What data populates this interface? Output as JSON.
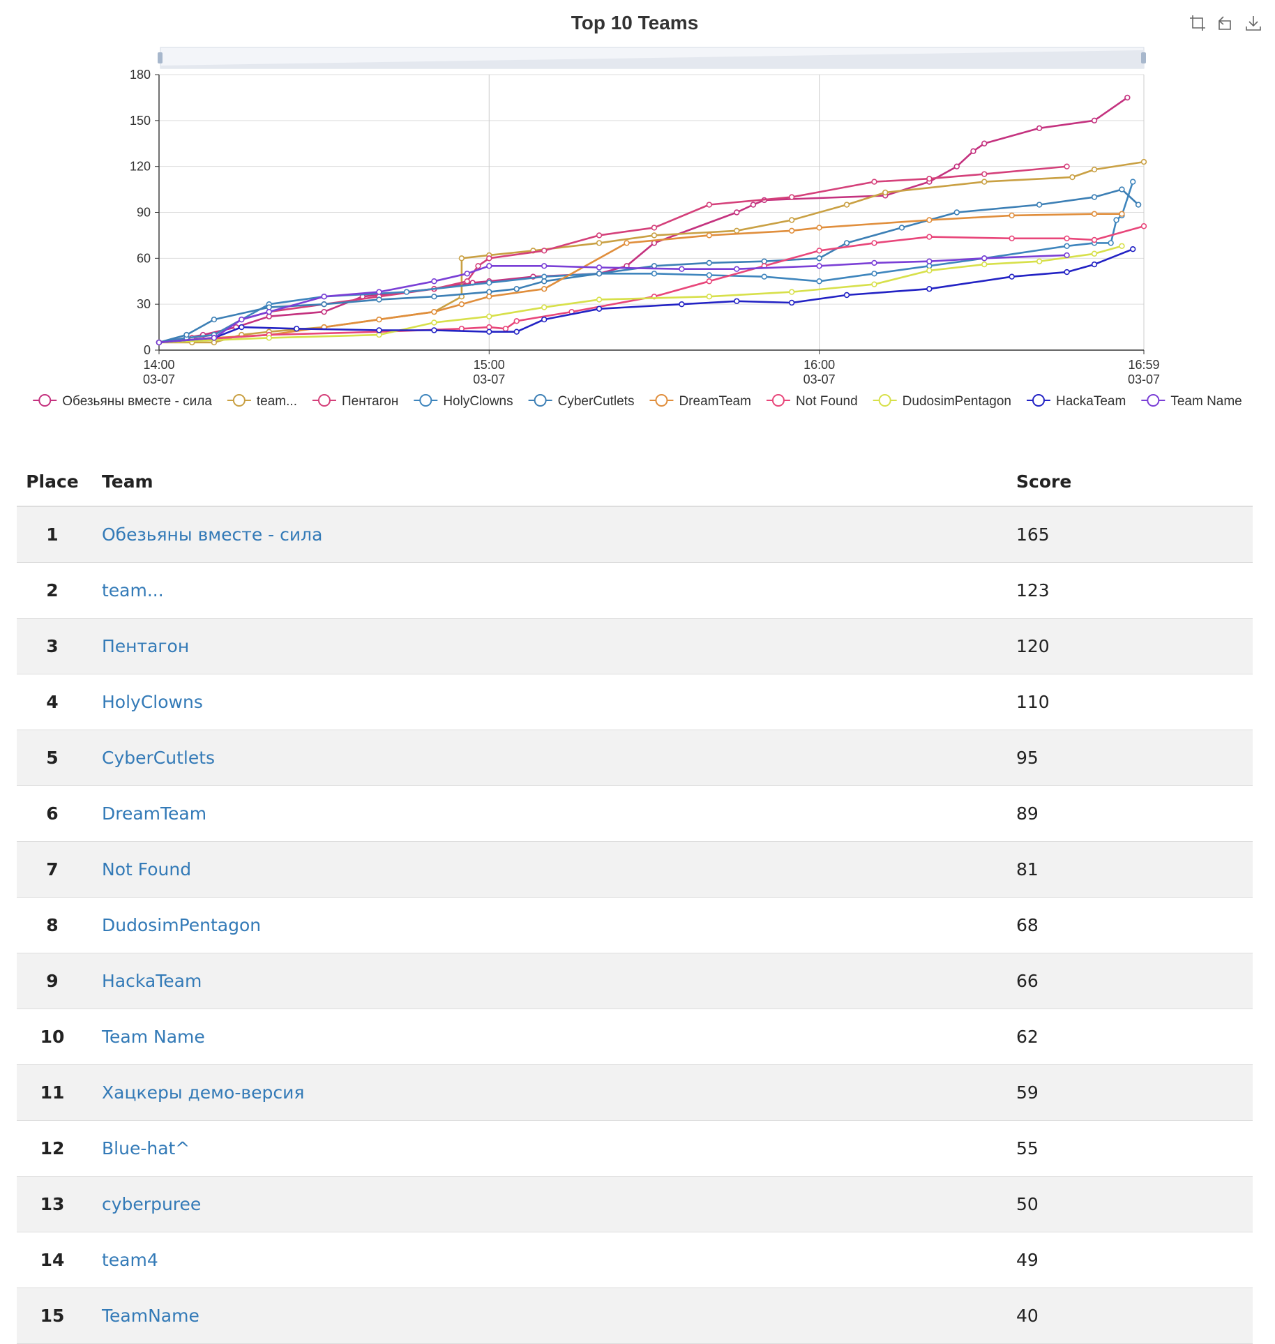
{
  "chart_data": {
    "type": "line",
    "title": "Top 10 Teams",
    "x_axis": {
      "type": "time",
      "min": "14:00",
      "max": "16:59",
      "ticks": [
        {
          "t": "14:00",
          "label": "14:00",
          "sub": "03-07"
        },
        {
          "t": "15:00",
          "label": "15:00",
          "sub": "03-07"
        },
        {
          "t": "16:00",
          "label": "16:00",
          "sub": "03-07"
        },
        {
          "t": "16:59",
          "label": "16:59",
          "sub": "03-07"
        }
      ]
    },
    "y_axis": {
      "min": 0,
      "max": 180,
      "ticks": [
        0,
        30,
        60,
        90,
        120,
        150,
        180
      ]
    },
    "grid": true,
    "legend_position": "bottom",
    "data_zoom_slider": true,
    "series": [
      {
        "name": "Обезьяны вместе - сила",
        "color": "#c4327f",
        "points": [
          [
            "14:00",
            5
          ],
          [
            "14:08",
            10
          ],
          [
            "14:14",
            15
          ],
          [
            "14:20",
            22
          ],
          [
            "14:30",
            25
          ],
          [
            "14:37",
            35
          ],
          [
            "14:50",
            40
          ],
          [
            "14:57",
            44
          ],
          [
            "15:00",
            45
          ],
          [
            "15:08",
            48
          ],
          [
            "15:20",
            50
          ],
          [
            "15:25",
            55
          ],
          [
            "15:30",
            70
          ],
          [
            "15:45",
            90
          ],
          [
            "15:48",
            95
          ],
          [
            "15:50",
            98
          ],
          [
            "16:12",
            101
          ],
          [
            "16:20",
            110
          ],
          [
            "16:25",
            120
          ],
          [
            "16:28",
            130
          ],
          [
            "16:30",
            135
          ],
          [
            "16:40",
            145
          ],
          [
            "16:50",
            150
          ],
          [
            "16:56",
            165
          ]
        ]
      },
      {
        "name": "team...",
        "color": "#c9a043",
        "points": [
          [
            "14:00",
            5
          ],
          [
            "14:06",
            5
          ],
          [
            "14:10",
            5
          ],
          [
            "14:15",
            10
          ],
          [
            "14:20",
            12
          ],
          [
            "14:30",
            15
          ],
          [
            "14:40",
            20
          ],
          [
            "14:50",
            25
          ],
          [
            "14:55",
            35
          ],
          [
            "14:55",
            60
          ],
          [
            "15:00",
            62
          ],
          [
            "15:08",
            65
          ],
          [
            "15:20",
            70
          ],
          [
            "15:30",
            75
          ],
          [
            "15:45",
            78
          ],
          [
            "15:55",
            85
          ],
          [
            "16:05",
            95
          ],
          [
            "16:12",
            103
          ],
          [
            "16:30",
            110
          ],
          [
            "16:46",
            113
          ],
          [
            "16:50",
            118
          ],
          [
            "16:59",
            123
          ]
        ]
      },
      {
        "name": "Пентагон",
        "color": "#d4407a",
        "points": [
          [
            "14:00",
            5
          ],
          [
            "14:06",
            8
          ],
          [
            "14:10",
            10
          ],
          [
            "14:15",
            20
          ],
          [
            "14:20",
            25
          ],
          [
            "14:30",
            30
          ],
          [
            "14:40",
            35
          ],
          [
            "14:50",
            40
          ],
          [
            "14:56",
            45
          ],
          [
            "14:58",
            55
          ],
          [
            "15:00",
            60
          ],
          [
            "15:10",
            65
          ],
          [
            "15:20",
            75
          ],
          [
            "15:30",
            80
          ],
          [
            "15:40",
            95
          ],
          [
            "15:55",
            100
          ],
          [
            "16:10",
            110
          ],
          [
            "16:20",
            112
          ],
          [
            "16:30",
            115
          ],
          [
            "16:45",
            120
          ]
        ]
      },
      {
        "name": "HolyClowns",
        "color": "#3e85bd",
        "points": [
          [
            "14:00",
            5
          ],
          [
            "14:05",
            8
          ],
          [
            "14:10",
            10
          ],
          [
            "14:20",
            30
          ],
          [
            "14:30",
            35
          ],
          [
            "14:45",
            38
          ],
          [
            "15:00",
            44
          ],
          [
            "15:10",
            48
          ],
          [
            "15:20",
            50
          ],
          [
            "15:30",
            50
          ],
          [
            "15:40",
            49
          ],
          [
            "15:50",
            48
          ],
          [
            "16:00",
            45
          ],
          [
            "16:10",
            50
          ],
          [
            "16:20",
            55
          ],
          [
            "16:30",
            60
          ],
          [
            "16:45",
            68
          ],
          [
            "16:50",
            70
          ],
          [
            "16:53",
            70
          ],
          [
            "16:54",
            85
          ],
          [
            "16:55",
            88
          ],
          [
            "16:57",
            110
          ]
        ]
      },
      {
        "name": "CyberCutlets",
        "color": "#3c7fb5",
        "points": [
          [
            "14:00",
            5
          ],
          [
            "14:05",
            10
          ],
          [
            "14:10",
            20
          ],
          [
            "14:20",
            28
          ],
          [
            "14:30",
            30
          ],
          [
            "14:40",
            33
          ],
          [
            "14:50",
            35
          ],
          [
            "15:00",
            38
          ],
          [
            "15:05",
            40
          ],
          [
            "15:10",
            45
          ],
          [
            "15:20",
            50
          ],
          [
            "15:30",
            55
          ],
          [
            "15:40",
            57
          ],
          [
            "15:50",
            58
          ],
          [
            "16:00",
            60
          ],
          [
            "16:05",
            70
          ],
          [
            "16:15",
            80
          ],
          [
            "16:25",
            90
          ],
          [
            "16:40",
            95
          ],
          [
            "16:50",
            100
          ],
          [
            "16:55",
            105
          ],
          [
            "16:58",
            95
          ]
        ]
      },
      {
        "name": "DreamTeam",
        "color": "#e08e3c",
        "points": [
          [
            "14:00",
            5
          ],
          [
            "14:10",
            8
          ],
          [
            "14:20",
            10
          ],
          [
            "14:30",
            15
          ],
          [
            "14:40",
            20
          ],
          [
            "14:50",
            25
          ],
          [
            "14:55",
            30
          ],
          [
            "15:00",
            35
          ],
          [
            "15:10",
            40
          ],
          [
            "15:25",
            70
          ],
          [
            "15:40",
            75
          ],
          [
            "15:55",
            78
          ],
          [
            "16:00",
            80
          ],
          [
            "16:20",
            85
          ],
          [
            "16:35",
            88
          ],
          [
            "16:50",
            89
          ],
          [
            "16:55",
            89
          ]
        ]
      },
      {
        "name": "Not Found",
        "color": "#e8467a",
        "points": [
          [
            "14:00",
            5
          ],
          [
            "14:20",
            10
          ],
          [
            "14:40",
            12
          ],
          [
            "14:55",
            14
          ],
          [
            "15:00",
            15
          ],
          [
            "15:03",
            14
          ],
          [
            "15:05",
            19
          ],
          [
            "15:15",
            25
          ],
          [
            "15:30",
            35
          ],
          [
            "15:40",
            45
          ],
          [
            "15:50",
            55
          ],
          [
            "16:00",
            65
          ],
          [
            "16:10",
            70
          ],
          [
            "16:20",
            74
          ],
          [
            "16:35",
            73
          ],
          [
            "16:45",
            73
          ],
          [
            "16:50",
            72
          ],
          [
            "16:59",
            81
          ]
        ]
      },
      {
        "name": "DudosimPentagon",
        "color": "#d7e04a",
        "points": [
          [
            "14:00",
            5
          ],
          [
            "14:20",
            8
          ],
          [
            "14:40",
            10
          ],
          [
            "14:50",
            18
          ],
          [
            "15:00",
            22
          ],
          [
            "15:10",
            28
          ],
          [
            "15:20",
            33
          ],
          [
            "15:40",
            35
          ],
          [
            "15:55",
            38
          ],
          [
            "16:10",
            43
          ],
          [
            "16:20",
            52
          ],
          [
            "16:30",
            56
          ],
          [
            "16:40",
            58
          ],
          [
            "16:50",
            63
          ],
          [
            "16:55",
            68
          ]
        ]
      },
      {
        "name": "HackaTeam",
        "color": "#2222c4",
        "points": [
          [
            "14:00",
            5
          ],
          [
            "14:10",
            8
          ],
          [
            "14:15",
            15
          ],
          [
            "14:25",
            14
          ],
          [
            "14:40",
            13
          ],
          [
            "14:50",
            13
          ],
          [
            "15:00",
            12
          ],
          [
            "15:05",
            12
          ],
          [
            "15:10",
            20
          ],
          [
            "15:20",
            27
          ],
          [
            "15:35",
            30
          ],
          [
            "15:45",
            32
          ],
          [
            "15:55",
            31
          ],
          [
            "16:05",
            36
          ],
          [
            "16:20",
            40
          ],
          [
            "16:35",
            48
          ],
          [
            "16:45",
            51
          ],
          [
            "16:50",
            56
          ],
          [
            "16:57",
            66
          ]
        ]
      },
      {
        "name": "Team Name",
        "color": "#7a3fd6",
        "points": [
          [
            "14:00",
            5
          ],
          [
            "14:10",
            8
          ],
          [
            "14:15",
            20
          ],
          [
            "14:20",
            25
          ],
          [
            "14:30",
            35
          ],
          [
            "14:40",
            38
          ],
          [
            "14:50",
            45
          ],
          [
            "14:56",
            50
          ],
          [
            "15:00",
            55
          ],
          [
            "15:10",
            55
          ],
          [
            "15:20",
            54
          ],
          [
            "15:35",
            53
          ],
          [
            "15:45",
            53
          ],
          [
            "16:00",
            55
          ],
          [
            "16:10",
            57
          ],
          [
            "16:20",
            58
          ],
          [
            "16:30",
            60
          ],
          [
            "16:45",
            62
          ]
        ]
      }
    ]
  },
  "toolbox": {
    "zoom_icon": "zoom-select-icon",
    "reset_icon": "zoom-reset-icon",
    "download_icon": "download-icon"
  },
  "table": {
    "headers": {
      "place": "Place",
      "team": "Team",
      "score": "Score"
    },
    "rows": [
      {
        "place": "1",
        "team": "Обезьяны вместе - сила",
        "score": "165"
      },
      {
        "place": "2",
        "team": "team...",
        "score": "123"
      },
      {
        "place": "3",
        "team": "Пентагон",
        "score": "120"
      },
      {
        "place": "4",
        "team": "HolyClowns",
        "score": "110"
      },
      {
        "place": "5",
        "team": "CyberCutlets",
        "score": "95"
      },
      {
        "place": "6",
        "team": "DreamTeam",
        "score": "89"
      },
      {
        "place": "7",
        "team": "Not Found",
        "score": "81"
      },
      {
        "place": "8",
        "team": "DudosimPentagon",
        "score": "68"
      },
      {
        "place": "9",
        "team": "HackaTeam",
        "score": "66"
      },
      {
        "place": "10",
        "team": "Team Name",
        "score": "62"
      },
      {
        "place": "11",
        "team": "Хацкеры демо-версия",
        "score": "59"
      },
      {
        "place": "12",
        "team": "Blue-hat^",
        "score": "55"
      },
      {
        "place": "13",
        "team": "cyberpuree",
        "score": "50"
      },
      {
        "place": "14",
        "team": "team4",
        "score": "49"
      },
      {
        "place": "15",
        "team": "TeamName",
        "score": "40"
      }
    ]
  }
}
